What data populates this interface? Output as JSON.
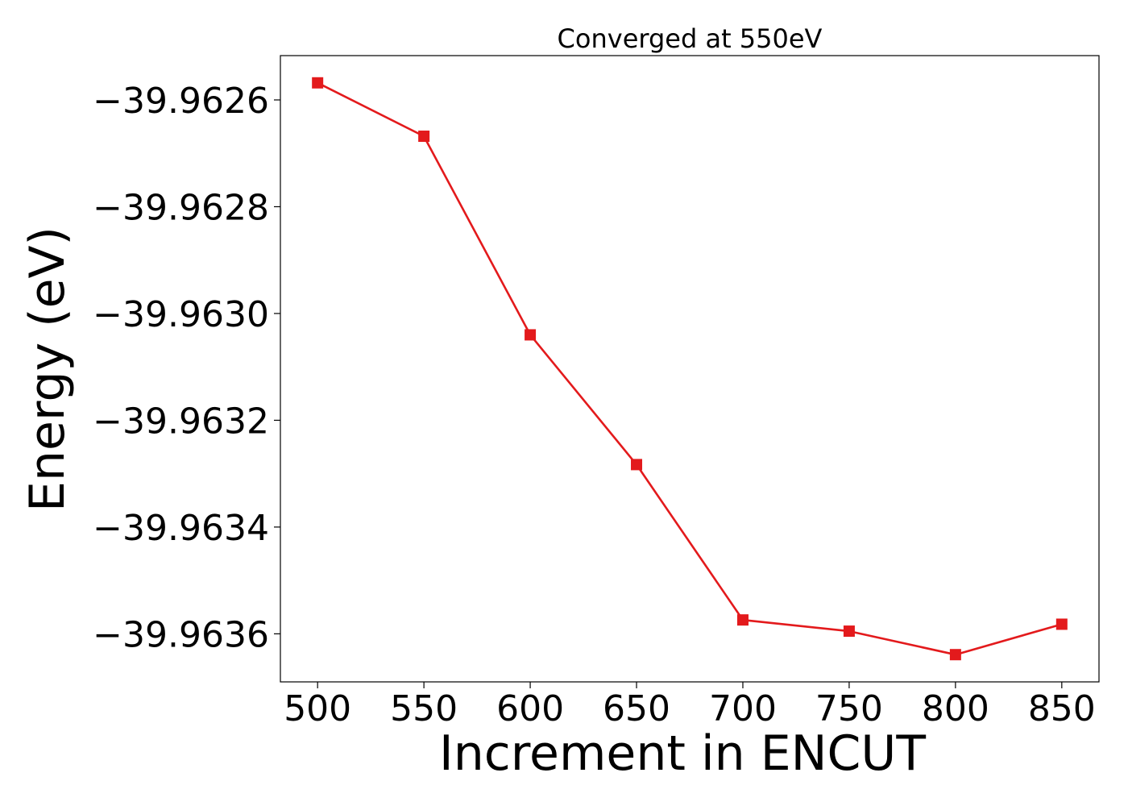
{
  "chart_data": {
    "type": "line",
    "title": "Converged at 550eV",
    "xlabel": "Increment in ENCUT",
    "ylabel": "Energy (eV)",
    "xlim": [
      482.5,
      867.5
    ],
    "ylim": [
      -39.96369,
      -39.962517
    ],
    "grid": false,
    "x_ticks": [
      500,
      550,
      600,
      650,
      700,
      750,
      800,
      850
    ],
    "x_tick_labels": [
      "500",
      "550",
      "600",
      "650",
      "700",
      "750",
      "800",
      "850"
    ],
    "y_ticks": [
      -39.9626,
      -39.9628,
      -39.963,
      -39.9632,
      -39.9634,
      -39.9636
    ],
    "y_tick_labels": [
      "−39.9626",
      "−39.9628",
      "−39.9630",
      "−39.9632",
      "−39.9634",
      "−39.9636"
    ],
    "series": [
      {
        "color": "#e31a1c",
        "marker": "square",
        "x": [
          500,
          550,
          600,
          650,
          700,
          750,
          800,
          850
        ],
        "y": [
          -39.962568,
          -39.962668,
          -39.96304,
          -39.963283,
          -39.963574,
          -39.963595,
          -39.963639,
          -39.963582
        ]
      }
    ]
  }
}
